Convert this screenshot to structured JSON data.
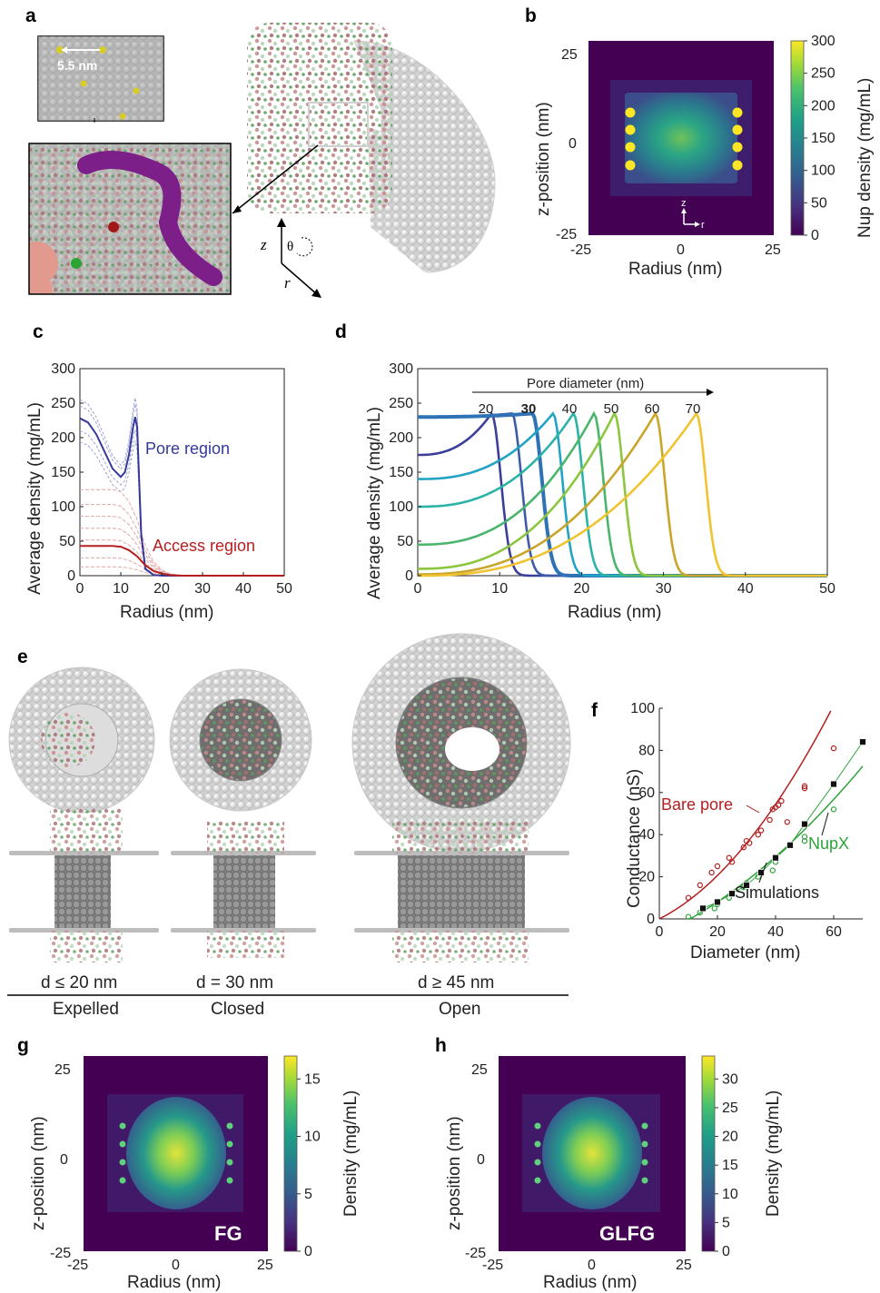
{
  "panel_labels": [
    "a",
    "b",
    "c",
    "d",
    "e",
    "f",
    "g",
    "h"
  ],
  "panel_a": {
    "scale_label": "5.5 nm",
    "axis_z": "z",
    "axis_r": "r",
    "axis_theta": "θ"
  },
  "panel_e": {
    "states": [
      {
        "condition": "d ≤ 20 nm",
        "name": "Expelled"
      },
      {
        "condition": "d = 30 nm",
        "name": "Closed"
      },
      {
        "condition": "d ≥ 45 nm",
        "name": "Open"
      }
    ]
  },
  "colors": {
    "pore_region": "#34399a",
    "access_region": "#b3201f",
    "bare_pore": "#b3201f",
    "nupx": "#2ea33a",
    "simulations": "#111111"
  },
  "chart_data": [
    {
      "id": "b",
      "type": "heatmap",
      "xlabel": "Radius (nm)",
      "ylabel": "z-position (nm)",
      "xlim": [
        -25,
        25
      ],
      "ylim": [
        -25,
        25
      ],
      "xticks": [
        "-25",
        "0",
        "25"
      ],
      "yticks": [
        "25",
        "0",
        "-25"
      ],
      "colorbar": {
        "label": "Nup density (mg/mL)",
        "range": [
          0,
          300
        ],
        "ticks": [
          "300",
          "250",
          "200",
          "150",
          "100",
          "50",
          "0"
        ]
      },
      "inset_axes": {
        "z": "z",
        "r": "r"
      }
    },
    {
      "id": "c",
      "type": "line",
      "xlabel": "Radius (nm)",
      "ylabel": "Average density (mg/mL)",
      "xlim": [
        0,
        50
      ],
      "ylim": [
        0,
        300
      ],
      "xticks": [
        "0",
        "10",
        "20",
        "30",
        "40",
        "50"
      ],
      "yticks": [
        "300",
        "250",
        "200",
        "150",
        "100",
        "50",
        "0"
      ],
      "series": [
        {
          "name": "Pore region",
          "x": [
            0,
            2,
            4,
            6,
            8,
            10,
            11,
            12,
            13,
            13.5,
            14,
            15,
            16,
            18,
            20,
            25,
            30,
            40,
            50
          ],
          "y": [
            228,
            222,
            205,
            180,
            155,
            143,
            150,
            175,
            215,
            230,
            215,
            60,
            10,
            1,
            0,
            0,
            0,
            0,
            0
          ]
        },
        {
          "name": "Access region",
          "x": [
            0,
            2,
            4,
            6,
            8,
            10,
            12,
            14,
            16,
            18,
            20,
            22,
            25,
            30,
            40,
            50
          ],
          "y": [
            43,
            43,
            43,
            43,
            43,
            42,
            37,
            28,
            15,
            7,
            3,
            1,
            0,
            0,
            0,
            0
          ]
        }
      ]
    },
    {
      "id": "d",
      "type": "line",
      "xlabel": "Radius (nm)",
      "ylabel": "Average density (mg/mL)",
      "xlim": [
        0,
        50
      ],
      "ylim": [
        0,
        300
      ],
      "xticks": [
        "0",
        "10",
        "20",
        "30",
        "40",
        "50"
      ],
      "yticks": [
        "300",
        "250",
        "200",
        "150",
        "100",
        "50",
        "0"
      ],
      "annotation": "Pore diameter (nm)",
      "series": [
        {
          "name": "20",
          "peak_r": 9,
          "center": 175
        },
        {
          "name": "25",
          "peak_r": 11.5,
          "center": 230
        },
        {
          "name": "30",
          "peak_r": 14,
          "center": 230
        },
        {
          "name": "35",
          "peak_r": 16.5,
          "center": 140
        },
        {
          "name": "40",
          "peak_r": 19,
          "center": 100
        },
        {
          "name": "45",
          "peak_r": 21.5,
          "center": 45
        },
        {
          "name": "50",
          "peak_r": 24,
          "center": 10
        },
        {
          "name": "60",
          "peak_r": 29,
          "center": 2
        },
        {
          "name": "70",
          "peak_r": 34,
          "center": 0
        }
      ],
      "labels": [
        "20",
        "30",
        "40",
        "50",
        "60",
        "70"
      ]
    },
    {
      "id": "f",
      "type": "scatter",
      "xlabel": "Diameter (nm)",
      "ylabel": "Conductance (nS)",
      "xlim": [
        0,
        70
      ],
      "ylim": [
        0,
        100
      ],
      "xticks": [
        "0",
        "20",
        "40",
        "60"
      ],
      "yticks": [
        "100",
        "80",
        "60",
        "40",
        "20",
        "0"
      ],
      "series": [
        {
          "name": "Bare pore",
          "x": [
            10,
            14,
            18,
            20,
            24,
            25,
            29,
            30,
            31,
            34,
            35,
            38,
            39,
            40,
            41,
            42,
            44,
            50,
            50,
            60
          ],
          "y": [
            10,
            16,
            22,
            25,
            29,
            27,
            34,
            37,
            36,
            40,
            42,
            47,
            52,
            53,
            54,
            56,
            46,
            62,
            63,
            81
          ]
        },
        {
          "name": "NupX",
          "x": [
            10,
            14,
            19,
            20,
            24,
            25,
            29,
            30,
            34,
            35,
            39,
            40,
            45,
            50,
            50,
            60
          ],
          "y": [
            1,
            3,
            5,
            7,
            10,
            12,
            15,
            17,
            20,
            22,
            23,
            27,
            35,
            37,
            39,
            52
          ]
        },
        {
          "name": "Simulations",
          "x": [
            15,
            20,
            25,
            30,
            35,
            40,
            45,
            50,
            60,
            70
          ],
          "y": [
            5,
            8,
            12,
            16,
            22,
            29,
            35,
            45,
            64,
            84
          ]
        }
      ],
      "fit_labels": [
        "Bare pore",
        "NupX",
        "Simulations"
      ]
    },
    {
      "id": "g",
      "type": "heatmap",
      "xlabel": "Radius (nm)",
      "ylabel": "z-position (nm)",
      "xlim": [
        -25,
        25
      ],
      "ylim": [
        -25,
        25
      ],
      "xticks": [
        "-25",
        "0",
        "25"
      ],
      "yticks": [
        "25",
        "0",
        "-25"
      ],
      "inset_label": "FG",
      "colorbar": {
        "label": "Density (mg/mL)",
        "range": [
          0,
          17
        ],
        "ticks": [
          "15",
          "10",
          "5",
          "0"
        ]
      }
    },
    {
      "id": "h",
      "type": "heatmap",
      "xlabel": "Radius (nm)",
      "ylabel": "z-position (nm)",
      "xlim": [
        -25,
        25
      ],
      "ylim": [
        -25,
        25
      ],
      "xticks": [
        "-25",
        "0",
        "25"
      ],
      "yticks": [
        "25",
        "0",
        "-25"
      ],
      "inset_label": "GLFG",
      "colorbar": {
        "label": "Density (mg/mL)",
        "range": [
          0,
          34
        ],
        "ticks": [
          "30",
          "25",
          "20",
          "15",
          "10",
          "5",
          "0"
        ]
      }
    }
  ]
}
